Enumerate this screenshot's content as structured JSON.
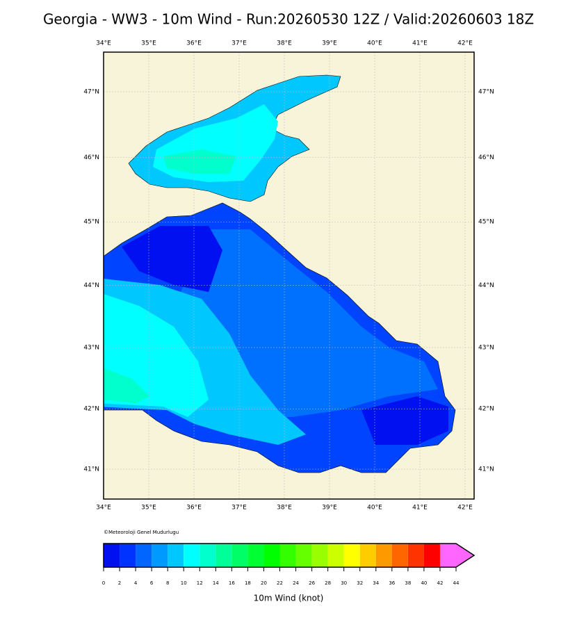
{
  "title": "Georgia - WW3 - 10m Wind - Run:20260530 12Z / Valid:20260603 18Z",
  "map": {
    "lon_ticks": [
      {
        "value": 34,
        "label": "34°E"
      },
      {
        "value": 35,
        "label": "35°E"
      },
      {
        "value": 36,
        "label": "36°E"
      },
      {
        "value": 37,
        "label": "37°E"
      },
      {
        "value": 38,
        "label": "38°E"
      },
      {
        "value": 39,
        "label": "39°E"
      },
      {
        "value": 40,
        "label": "40°E"
      },
      {
        "value": 41,
        "label": "41°E"
      },
      {
        "value": 42,
        "label": "42°E"
      }
    ],
    "lat_ticks": [
      {
        "value": 41,
        "label": "41°N"
      },
      {
        "value": 42,
        "label": "42°N"
      },
      {
        "value": 43,
        "label": "43°N"
      },
      {
        "value": 44,
        "label": "44°N"
      },
      {
        "value": 45,
        "label": "45°N"
      },
      {
        "value": 46,
        "label": "46°N"
      },
      {
        "value": 47,
        "label": "47°N"
      }
    ],
    "credit": "©Meteoroloji Genel Mudurlugu"
  },
  "colorbar": {
    "label": "10m Wind (knot)",
    "ticks": [
      0,
      2,
      4,
      6,
      8,
      10,
      12,
      14,
      16,
      18,
      20,
      22,
      24,
      26,
      28,
      30,
      32,
      34,
      36,
      38,
      40,
      42,
      44
    ],
    "colors": [
      "#0010f0",
      "#0033ff",
      "#0066ff",
      "#0099ff",
      "#00c8ff",
      "#00ffff",
      "#00ffcc",
      "#00ff99",
      "#00ff66",
      "#00ff33",
      "#00ff00",
      "#33ff00",
      "#66ff00",
      "#99ff00",
      "#ccff00",
      "#ffff00",
      "#ffcc00",
      "#ff9900",
      "#ff6600",
      "#ff3300",
      "#ff0000",
      "#ff66ff"
    ]
  }
}
